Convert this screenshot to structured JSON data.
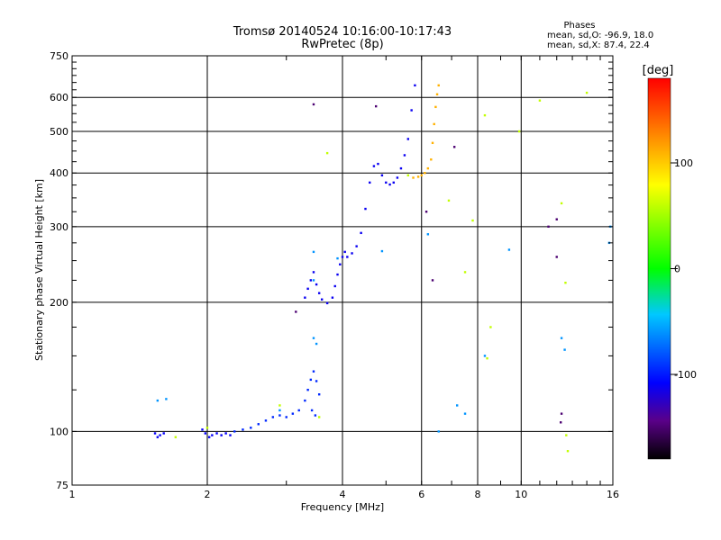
{
  "header": {
    "title_line1": "Tromsø 20140524 10:16:00-10:17:43",
    "title_line2": "RwPretec (8p)",
    "stats_heading": "Phases",
    "stats_line1": "mean, sd,O: -96.9, 18.0",
    "stats_line2": "mean, sd,X:  87.4, 22.4"
  },
  "chart_data": {
    "type": "scatter",
    "title": "Tromsø 20140524 10:16:00-10:17:43",
    "subtitle": "RwPretec (8p)",
    "xlabel": "Frequency [MHz]",
    "ylabel": "Stationary phase Virtual Height [km]",
    "xscale": "log",
    "yscale": "log",
    "xlim": [
      1,
      16
    ],
    "ylim": [
      75,
      750
    ],
    "x_ticks": [
      1,
      2,
      4,
      6,
      8,
      10,
      16
    ],
    "x_tick_labels": [
      "1",
      "2",
      "4",
      "6",
      "8",
      "10",
      "16"
    ],
    "y_ticks": [
      75,
      100,
      200,
      300,
      400,
      500,
      600,
      750
    ],
    "y_tick_labels": [
      "75",
      "100",
      "200",
      "300",
      "400",
      "500",
      "600",
      "750"
    ],
    "grid": true,
    "colorbar": {
      "label": "[deg]",
      "range": [
        -180,
        180
      ],
      "ticks": [
        100,
        0,
        -100
      ],
      "tick_labels": [
        "100",
        "0",
        "-100"
      ]
    },
    "series": [
      {
        "color_value": -110,
        "points": [
          [
            1.53,
            99
          ],
          [
            1.57,
            98
          ],
          [
            1.6,
            99
          ],
          [
            1.55,
            97
          ],
          [
            1.95,
            101
          ],
          [
            1.98,
            99
          ],
          [
            2.02,
            97
          ],
          [
            2.05,
            98
          ],
          [
            2.1,
            99
          ],
          [
            2.15,
            98
          ],
          [
            2.2,
            99
          ],
          [
            2.25,
            98
          ]
        ]
      },
      {
        "color_value": -95,
        "points": [
          [
            2.3,
            100
          ],
          [
            2.4,
            101
          ],
          [
            2.5,
            102
          ],
          [
            2.6,
            104
          ],
          [
            2.7,
            106
          ],
          [
            2.8,
            108
          ],
          [
            2.9,
            109
          ],
          [
            3.0,
            108
          ],
          [
            3.1,
            110
          ],
          [
            3.2,
            112
          ],
          [
            3.3,
            118
          ],
          [
            3.35,
            125
          ],
          [
            3.4,
            132
          ],
          [
            3.45,
            138
          ],
          [
            3.5,
            131
          ],
          [
            3.55,
            122
          ],
          [
            3.42,
            112
          ],
          [
            3.48,
            109
          ]
        ]
      },
      {
        "color_value": -112,
        "points": [
          [
            3.3,
            205
          ],
          [
            3.35,
            215
          ],
          [
            3.4,
            225
          ],
          [
            3.45,
            235
          ],
          [
            3.5,
            220
          ],
          [
            3.55,
            210
          ],
          [
            3.6,
            203
          ],
          [
            3.7,
            199
          ],
          [
            3.8,
            205
          ],
          [
            3.85,
            218
          ],
          [
            3.9,
            232
          ],
          [
            3.95,
            245
          ],
          [
            4.0,
            255
          ],
          [
            4.05,
            262
          ],
          [
            4.1,
            255
          ],
          [
            4.2,
            260
          ],
          [
            4.3,
            270
          ],
          [
            4.4,
            290
          ],
          [
            4.5,
            330
          ],
          [
            4.6,
            380
          ],
          [
            4.7,
            415
          ],
          [
            4.8,
            420
          ],
          [
            4.9,
            395
          ],
          [
            5.0,
            380
          ],
          [
            5.1,
            376
          ],
          [
            5.2,
            380
          ],
          [
            5.3,
            390
          ],
          [
            5.4,
            410
          ],
          [
            5.5,
            440
          ],
          [
            5.6,
            480
          ],
          [
            5.7,
            560
          ],
          [
            5.8,
            640
          ]
        ]
      },
      {
        "color_value": 110,
        "points": [
          [
            5.75,
            390
          ],
          [
            5.9,
            392
          ],
          [
            6.0,
            395
          ],
          [
            6.1,
            400
          ],
          [
            6.2,
            410
          ],
          [
            6.3,
            430
          ],
          [
            6.35,
            470
          ],
          [
            6.4,
            520
          ],
          [
            6.45,
            570
          ],
          [
            6.5,
            610
          ],
          [
            6.55,
            640
          ]
        ]
      },
      {
        "color_value": -60,
        "points": [
          [
            1.55,
            118
          ],
          [
            1.62,
            119
          ],
          [
            2.9,
            112
          ],
          [
            3.45,
            165
          ],
          [
            3.5,
            160
          ],
          [
            3.45,
            225
          ],
          [
            3.45,
            262
          ],
          [
            3.9,
            253
          ],
          [
            4.9,
            263
          ],
          [
            6.2,
            288
          ],
          [
            6.55,
            100
          ],
          [
            7.2,
            115
          ],
          [
            7.5,
            110
          ],
          [
            8.3,
            150
          ],
          [
            9.4,
            265
          ],
          [
            12.3,
            165
          ],
          [
            12.5,
            155
          ],
          [
            15.8,
            300
          ],
          [
            15.7,
            275
          ]
        ]
      },
      {
        "color_value": 60,
        "points": [
          [
            1.7,
            97
          ],
          [
            2.0,
            102
          ],
          [
            2.9,
            115
          ],
          [
            3.55,
            108
          ],
          [
            3.7,
            445
          ],
          [
            5.6,
            395
          ],
          [
            6.9,
            345
          ],
          [
            7.5,
            235
          ],
          [
            8.3,
            545
          ],
          [
            8.4,
            148
          ],
          [
            8.55,
            175
          ],
          [
            9.9,
            500
          ],
          [
            11.0,
            590
          ],
          [
            12.3,
            340
          ],
          [
            12.55,
            222
          ],
          [
            12.6,
            98
          ],
          [
            12.7,
            90
          ],
          [
            14.0,
            615
          ],
          [
            7.8,
            310
          ]
        ]
      },
      {
        "color_value": -150,
        "points": [
          [
            3.15,
            190
          ],
          [
            3.45,
            578
          ],
          [
            4.75,
            572
          ],
          [
            6.15,
            325
          ],
          [
            6.35,
            225
          ],
          [
            7.1,
            460
          ],
          [
            12.0,
            312
          ],
          [
            11.5,
            300
          ],
          [
            12.3,
            110
          ],
          [
            12.25,
            105
          ],
          [
            12.0,
            255
          ]
        ]
      }
    ]
  }
}
